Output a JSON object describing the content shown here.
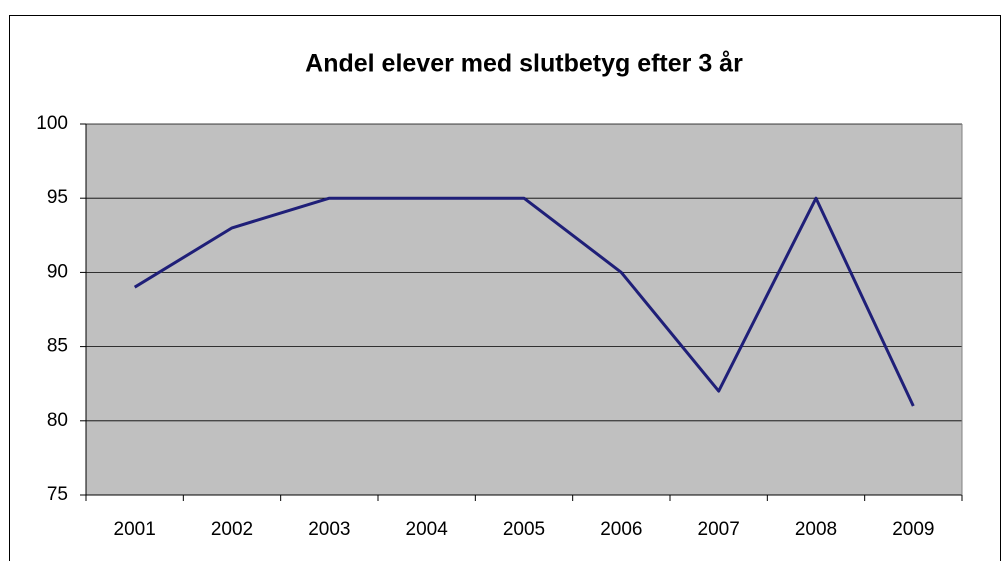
{
  "chart_data": {
    "type": "line",
    "title": "Andel elever med slutbetyg efter 3 år",
    "categories": [
      "2001",
      "2002",
      "2003",
      "2004",
      "2005",
      "2006",
      "2007",
      "2008",
      "2009"
    ],
    "values": [
      89,
      93,
      95,
      95,
      95,
      90,
      82,
      95,
      81
    ],
    "color": "#1f1f78",
    "background": "#c0c0c0",
    "ylim": [
      75,
      100
    ],
    "yticks": [
      75,
      80,
      85,
      90,
      95,
      100
    ],
    "grid": true
  }
}
